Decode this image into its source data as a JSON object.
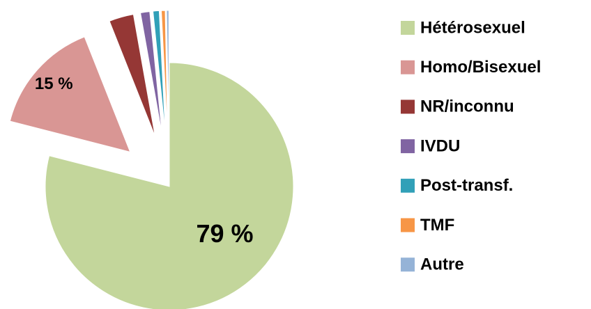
{
  "chart_data": {
    "type": "pie",
    "categories": [
      "Hétérosexuel",
      "Homo/Bisexuel",
      "NR/inconnu",
      "IVDU",
      "Post-transf.",
      "TMF",
      "Autre"
    ],
    "values": [
      79,
      15,
      3.2,
      1.2,
      0.8,
      0.5,
      0.3
    ],
    "value_labels": [
      "79 %",
      "15 %",
      null,
      null,
      null,
      null,
      null
    ],
    "colors": [
      "#c3d69b",
      "#d99694",
      "#953735",
      "#8064a2",
      "#31a0b8",
      "#f79646",
      "#95b3d7"
    ],
    "legend": "right"
  }
}
